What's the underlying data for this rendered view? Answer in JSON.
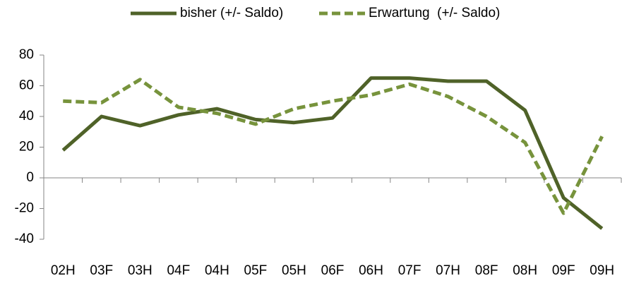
{
  "chart_data": {
    "type": "line",
    "categories": [
      "02H",
      "03F",
      "03H",
      "04F",
      "04H",
      "05F",
      "05H",
      "06F",
      "06H",
      "07F",
      "07H",
      "08F",
      "08H",
      "09F",
      "09H"
    ],
    "series": [
      {
        "name": "bisher (+/- Saldo)",
        "color": "#4f6228",
        "dashed": false,
        "values": [
          18,
          40,
          34,
          41,
          45,
          38,
          36,
          39,
          65,
          65,
          63,
          63,
          44,
          -13,
          -33
        ]
      },
      {
        "name": "Erwartung  (+/- Saldo)",
        "color": "#77933c",
        "dashed": true,
        "values": [
          50,
          49,
          64,
          46,
          42,
          35,
          45,
          50,
          54,
          61,
          53,
          40,
          23,
          -23,
          27
        ]
      }
    ],
    "ylim": [
      -40,
      80
    ],
    "yticks": [
      -40,
      -20,
      0,
      20,
      40,
      60,
      80
    ],
    "grid": false,
    "legend": "top"
  }
}
